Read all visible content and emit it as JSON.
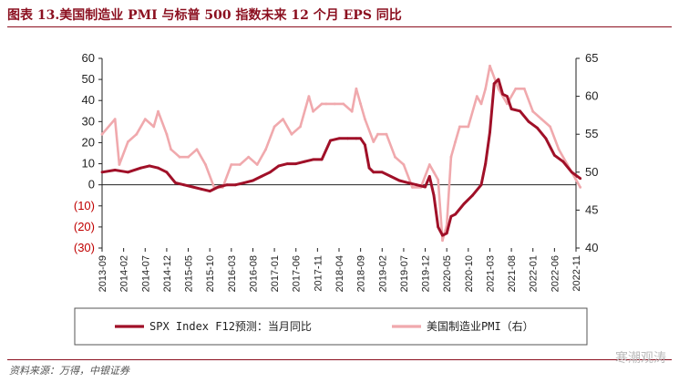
{
  "page": {
    "title": "图表 13.美国制造业 PMI 与标普 500 指数未来 12 个月 EPS 同比",
    "source": "资料来源：万得，中银证券",
    "watermark": "寒潮观涛"
  },
  "colors": {
    "title": "#8b0f1f",
    "eps_series": "#a01028",
    "pmi_series": "#f0a9ad",
    "negative_tick": "#c00000"
  },
  "chart_data": {
    "type": "line",
    "title": "",
    "xlabel": "",
    "ylabel": "",
    "y_left": {
      "lim": [
        -30,
        60
      ],
      "ticks": [
        60,
        50,
        40,
        30,
        20,
        10,
        0,
        -10,
        -20,
        -30
      ],
      "tick_labels": [
        "60",
        "50",
        "40",
        "30",
        "20",
        "10",
        "0",
        "(10)",
        "(20)",
        "(30)"
      ]
    },
    "y_right": {
      "lim": [
        40,
        65
      ],
      "ticks": [
        65,
        60,
        55,
        50,
        45,
        40
      ],
      "tick_labels": [
        "65",
        "60",
        "55",
        "50",
        "45",
        "40"
      ]
    },
    "x_tick_labels": [
      "2013-09",
      "2014-02",
      "2014-07",
      "2014-12",
      "2015-05",
      "2015-10",
      "2016-03",
      "2016-08",
      "2017-01",
      "2017-06",
      "2017-11",
      "2018-04",
      "2018-09",
      "2019-02",
      "2019-07",
      "2019-12",
      "2020-05",
      "2020-10",
      "2021-03",
      "2021-08",
      "2022-01",
      "2022-06",
      "2022-11"
    ],
    "grid": false,
    "legend": {
      "position": "bottom"
    },
    "series": [
      {
        "name": "SPX Index F12预测：当月同比",
        "axis": "left",
        "x": [
          "2013-09",
          "2013-12",
          "2014-03",
          "2014-06",
          "2014-08",
          "2014-10",
          "2014-12",
          "2015-02",
          "2015-04",
          "2015-06",
          "2015-08",
          "2015-10",
          "2015-12",
          "2016-02",
          "2016-04",
          "2016-06",
          "2016-08",
          "2016-10",
          "2016-12",
          "2017-02",
          "2017-04",
          "2017-06",
          "2017-08",
          "2017-10",
          "2017-12",
          "2018-02",
          "2018-04",
          "2018-06",
          "2018-08",
          "2018-09",
          "2018-10",
          "2018-11",
          "2018-12",
          "2019-02",
          "2019-04",
          "2019-06",
          "2019-08",
          "2019-10",
          "2019-12",
          "2020-01",
          "2020-02",
          "2020-03",
          "2020-04",
          "2020-05",
          "2020-06",
          "2020-07",
          "2020-09",
          "2020-11",
          "2021-01",
          "2021-02",
          "2021-03",
          "2021-04",
          "2021-05",
          "2021-06",
          "2021-07",
          "2021-08",
          "2021-10",
          "2021-12",
          "2022-02",
          "2022-04",
          "2022-06",
          "2022-08",
          "2022-10",
          "2022-12"
        ],
        "y": [
          6,
          7,
          6,
          8,
          9,
          8,
          6,
          1,
          0,
          -1,
          -2,
          -3,
          -1,
          0,
          0,
          1,
          2,
          4,
          6,
          9,
          10,
          10,
          11,
          12,
          12,
          21,
          22,
          22,
          22,
          22,
          19,
          8,
          6,
          6,
          4,
          2,
          1,
          0,
          -1,
          4,
          -5,
          -20,
          -24,
          -23,
          -15,
          -14,
          -9,
          -5,
          0,
          10,
          25,
          48,
          50,
          43,
          42,
          36,
          35,
          30,
          27,
          22,
          14,
          11,
          6,
          3
        ]
      },
      {
        "name": "美国制造业PMI（右）",
        "axis": "right",
        "x": [
          "2013-09",
          "2013-12",
          "2014-01",
          "2014-03",
          "2014-05",
          "2014-07",
          "2014-09",
          "2014-10",
          "2014-12",
          "2015-01",
          "2015-03",
          "2015-05",
          "2015-07",
          "2015-09",
          "2015-11",
          "2015-12",
          "2016-01",
          "2016-03",
          "2016-05",
          "2016-07",
          "2016-09",
          "2016-11",
          "2017-01",
          "2017-03",
          "2017-05",
          "2017-07",
          "2017-09",
          "2017-10",
          "2017-12",
          "2018-01",
          "2018-03",
          "2018-05",
          "2018-07",
          "2018-08",
          "2018-09",
          "2018-10",
          "2018-12",
          "2019-01",
          "2019-03",
          "2019-05",
          "2019-07",
          "2019-09",
          "2019-11",
          "2020-01",
          "2020-02",
          "2020-03",
          "2020-04",
          "2020-05",
          "2020-06",
          "2020-07",
          "2020-08",
          "2020-10",
          "2020-12",
          "2021-01",
          "2021-02",
          "2021-03",
          "2021-05",
          "2021-07",
          "2021-09",
          "2021-11",
          "2022-01",
          "2022-03",
          "2022-05",
          "2022-07",
          "2022-09",
          "2022-11",
          "2022-12"
        ],
        "y": [
          55,
          57,
          51,
          54,
          55,
          57,
          56,
          58,
          55,
          53,
          52,
          52,
          53,
          51,
          48,
          48,
          48,
          51,
          51,
          52,
          51,
          53,
          56,
          57,
          55,
          56,
          60,
          58,
          59,
          59,
          59,
          59,
          58,
          61,
          59,
          57,
          54,
          55,
          55,
          52,
          51,
          48,
          48,
          51,
          50,
          49,
          41,
          43,
          52,
          54,
          56,
          56,
          60,
          59,
          61,
          64,
          61,
          59,
          61,
          61,
          58,
          57,
          56,
          53,
          51,
          49,
          48
        ]
      }
    ]
  }
}
